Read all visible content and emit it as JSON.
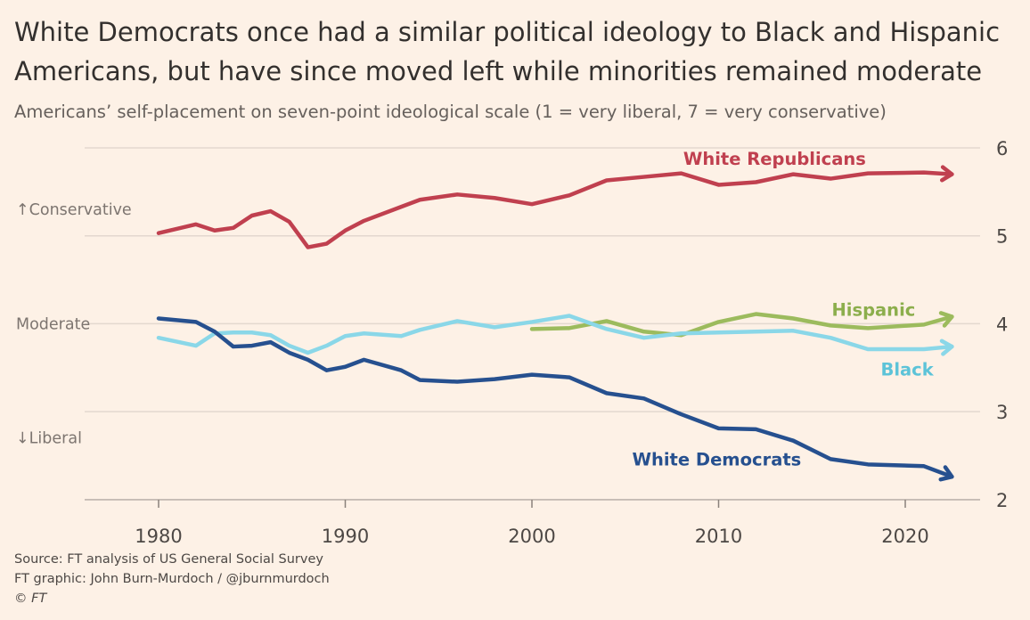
{
  "title": "White Democrats once had a similar political ideology to Black and Hispanic Americans, but have since moved left while minorities remained moderate",
  "subtitle": "Americans’ self-placement on seven-point ideological scale (1 = very liberal, 7 = very conservative)",
  "footer": {
    "source": "Source: FT analysis of US General Social Survey",
    "graphic": "FT graphic: John Burn-Murdoch / @jburnmurdoch",
    "copyright": "© FT"
  },
  "chart_data": {
    "type": "line",
    "xlim": [
      1976,
      2024
    ],
    "ylim": [
      2,
      6
    ],
    "x_ticks": [
      1980,
      1990,
      2000,
      2010,
      2020
    ],
    "y_ticks": [
      2,
      3,
      4,
      5,
      6
    ],
    "grid": true,
    "y_axis_side": "right",
    "annotations": [
      {
        "text": "↑Conservative",
        "y": 5.3
      },
      {
        "text": "Moderate",
        "y": 4.0
      },
      {
        "text": "↓Liberal",
        "y": 2.7
      }
    ],
    "series": [
      {
        "name": "White Republicans",
        "color": "#c0404f",
        "x": [
          1980,
          1982,
          1983,
          1984,
          1985,
          1986,
          1987,
          1988,
          1989,
          1990,
          1991,
          1993,
          1994,
          1996,
          1998,
          2000,
          2002,
          2004,
          2006,
          2008,
          2010,
          2012,
          2014,
          2016,
          2018,
          2021,
          2022.5
        ],
        "y": [
          5.03,
          5.13,
          5.06,
          5.09,
          5.23,
          5.28,
          5.16,
          4.87,
          4.91,
          5.06,
          5.17,
          5.33,
          5.41,
          5.47,
          5.43,
          5.36,
          5.46,
          5.63,
          5.67,
          5.71,
          5.58,
          5.61,
          5.7,
          5.65,
          5.71,
          5.72,
          5.7
        ]
      },
      {
        "name": "Hispanic",
        "color": "#9cbb5d",
        "x": [
          2000,
          2002,
          2004,
          2006,
          2008,
          2010,
          2012,
          2014,
          2016,
          2018,
          2021,
          2022.5
        ],
        "y": [
          3.94,
          3.95,
          4.03,
          3.91,
          3.87,
          4.02,
          4.11,
          4.06,
          3.98,
          3.95,
          3.99,
          4.08
        ]
      },
      {
        "name": "Black",
        "color": "#8ad7e8",
        "x": [
          1980,
          1982,
          1983,
          1984,
          1985,
          1986,
          1987,
          1988,
          1989,
          1990,
          1991,
          1993,
          1994,
          1996,
          1998,
          2000,
          2002,
          2004,
          2006,
          2008,
          2010,
          2014,
          2016,
          2018,
          2021,
          2022.5
        ],
        "y": [
          3.84,
          3.75,
          3.89,
          3.9,
          3.9,
          3.87,
          3.75,
          3.67,
          3.75,
          3.86,
          3.89,
          3.86,
          3.93,
          4.03,
          3.96,
          4.02,
          4.09,
          3.94,
          3.84,
          3.89,
          3.9,
          3.92,
          3.84,
          3.71,
          3.71,
          3.74
        ]
      },
      {
        "name": "White Democrats",
        "color": "#26508f",
        "x": [
          1980,
          1982,
          1983,
          1984,
          1985,
          1986,
          1987,
          1988,
          1989,
          1990,
          1991,
          1993,
          1994,
          1996,
          1998,
          2000,
          2002,
          2004,
          2006,
          2008,
          2010,
          2012,
          2014,
          2016,
          2018,
          2021,
          2022.5
        ],
        "y": [
          4.06,
          4.02,
          3.91,
          3.74,
          3.75,
          3.79,
          3.67,
          3.59,
          3.47,
          3.51,
          3.59,
          3.47,
          3.36,
          3.34,
          3.37,
          3.42,
          3.39,
          3.21,
          3.15,
          2.97,
          2.81,
          2.8,
          2.67,
          2.46,
          2.4,
          2.38,
          2.26
        ]
      }
    ],
    "series_labels": [
      {
        "text": "White Republicans",
        "color": "#c0404f",
        "x": 2013,
        "y": 5.88
      },
      {
        "text": "Hispanic",
        "color": "#8cae4c",
        "x": 2018.3,
        "y": 4.16
      },
      {
        "text": "Black",
        "color": "#5cc3d8",
        "x": 2020.1,
        "y": 3.48
      },
      {
        "text": "White Democrats",
        "color": "#26508f",
        "x": 2009.9,
        "y": 2.46
      }
    ]
  }
}
